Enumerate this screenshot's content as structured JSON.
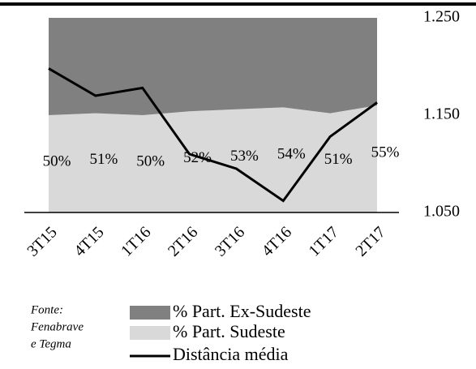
{
  "chart_data": {
    "type": "stacked_area_line",
    "categories": [
      "3T15",
      "4T15",
      "1T16",
      "2T16",
      "3T16",
      "4T16",
      "1T17",
      "2T17"
    ],
    "series": [
      {
        "name": "% Part. Sudeste",
        "color": "#d9d9d9",
        "values": [
          50,
          51,
          50,
          52,
          53,
          54,
          51,
          55
        ],
        "value_labels": [
          "50%",
          "51%",
          "50%",
          "52%",
          "53%",
          "54%",
          "51%",
          "55%"
        ]
      },
      {
        "name": "% Part. Ex-Sudeste",
        "color": "#808080",
        "values": [
          50,
          49,
          50,
          48,
          47,
          46,
          49,
          45
        ]
      },
      {
        "name": "Distância média",
        "color": "#000000",
        "axis": "y2",
        "values": [
          1198,
          1170,
          1178,
          1110,
          1095,
          1062,
          1128,
          1163
        ]
      }
    ],
    "ylim": [
      0,
      100
    ],
    "y2lim": [
      1050,
      1250
    ],
    "y2ticks": [
      {
        "value": 1050,
        "label": "1.050"
      },
      {
        "value": 1150,
        "label": "1.150"
      },
      {
        "value": 1250,
        "label": "1.250"
      }
    ],
    "source": [
      "Fonte:",
      "Fenabrave",
      "e Tegma"
    ]
  }
}
